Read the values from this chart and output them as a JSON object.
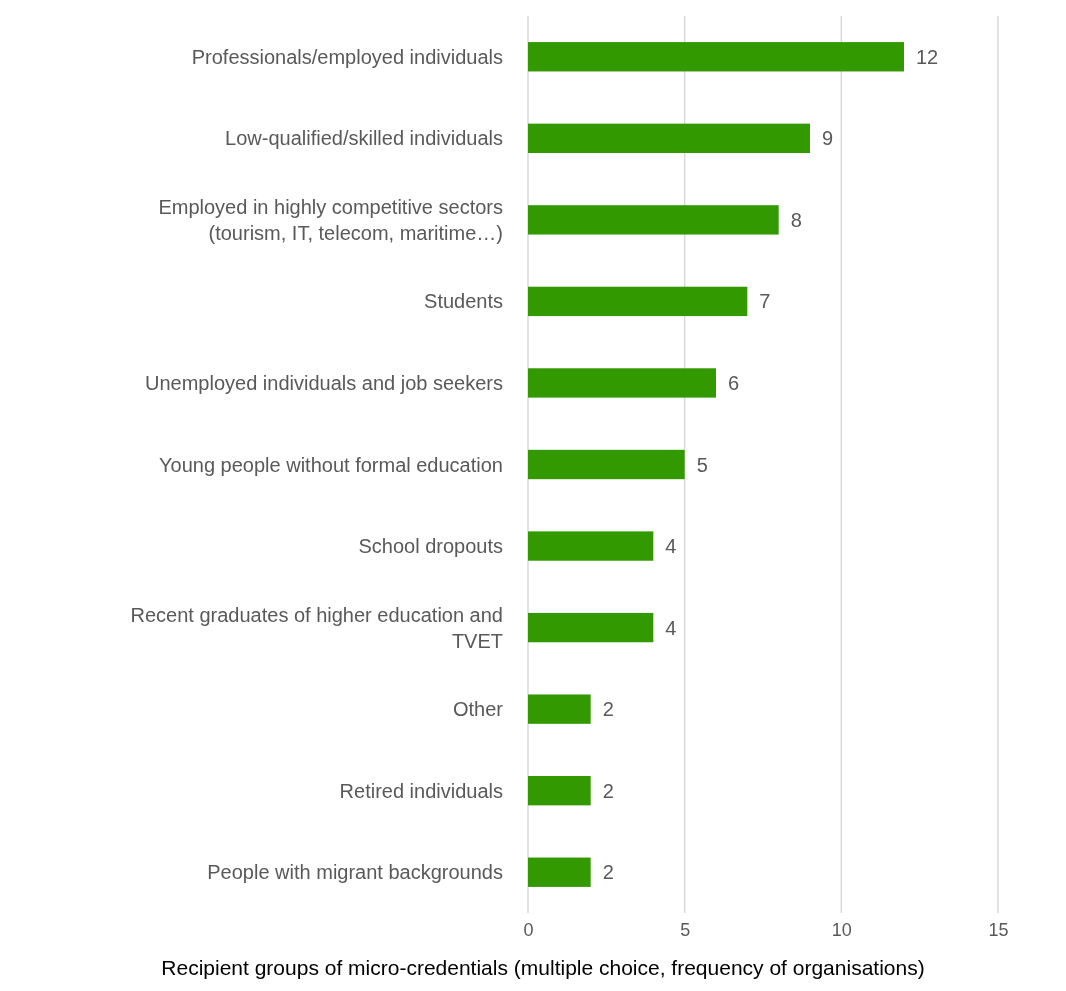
{
  "chart_data": {
    "type": "bar",
    "orientation": "horizontal",
    "xlabel": "Recipient groups of micro-credentials (multiple choice, frequency of organisations)",
    "categories": [
      "Professionals/employed individuals",
      "Low-qualified/skilled individuals",
      "Employed in highly competitive sectors (tourism, IT, telecom, maritime…)",
      "Students",
      "Unemployed individuals and job seekers",
      "Young people without formal education",
      "School dropouts",
      "Recent graduates of higher education and TVET",
      "Other",
      "Retired individuals",
      "People with migrant backgrounds"
    ],
    "values": [
      12,
      9,
      8,
      7,
      6,
      5,
      4,
      4,
      2,
      2,
      2
    ],
    "color": "#339900",
    "xlim": [
      0,
      15
    ],
    "xticks": [
      0,
      5,
      10,
      15
    ],
    "grid": "x",
    "data_labels": true
  }
}
